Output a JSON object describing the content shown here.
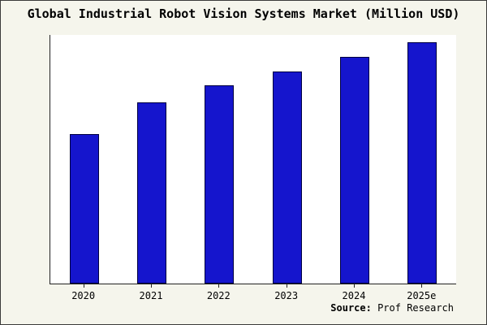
{
  "title": "Global Industrial Robot Vision Systems Market (Million USD)",
  "source": {
    "label": "Source:",
    "value": " Prof Research"
  },
  "colors": {
    "background": "#f5f5ec",
    "plot_background": "#ffffff",
    "bar_fill": "#1515cd",
    "bar_border": "#000040",
    "axis": "#222222"
  },
  "chart_data": {
    "type": "bar",
    "title": "Global Industrial Robot Vision Systems Market (Million USD)",
    "categories": [
      "2020",
      "2021",
      "2022",
      "2023",
      "2024",
      "2025e"
    ],
    "values": [
      62,
      75,
      82,
      88,
      94,
      100
    ],
    "xlabel": "",
    "ylabel": "",
    "ylim": [
      0,
      103
    ],
    "grid": false,
    "legend": false,
    "y_axis_labels_visible": false,
    "annotation": "Source: Prof Research"
  }
}
